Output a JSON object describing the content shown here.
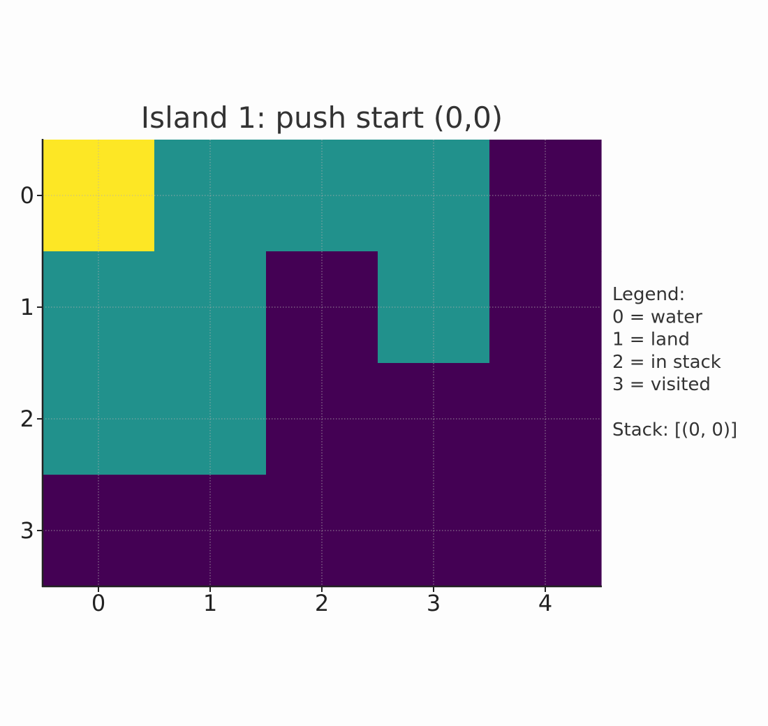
{
  "chart_data": {
    "type": "heatmap",
    "title": "Island 1: push start (0,0)",
    "rows": [
      0,
      1,
      2,
      3
    ],
    "cols": [
      0,
      1,
      2,
      3,
      4
    ],
    "values": [
      [
        2,
        1,
        1,
        1,
        0
      ],
      [
        1,
        1,
        0,
        1,
        0
      ],
      [
        1,
        1,
        0,
        0,
        0
      ],
      [
        0,
        0,
        0,
        0,
        0
      ]
    ],
    "colormap": {
      "0": "#440154",
      "1": "#21918c",
      "2": "#fde725",
      "3": "#fde725"
    },
    "grid": true,
    "legend": {
      "lines": [
        "Legend:",
        "0 = water",
        "1 = land",
        "2 = in stack",
        "3 = visited",
        "",
        "Stack: [(0, 0)]"
      ]
    }
  }
}
